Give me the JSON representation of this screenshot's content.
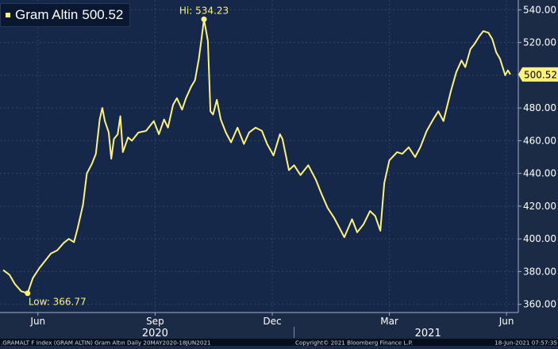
{
  "colors": {
    "background": "#1b2b45",
    "plot_background": "#15284a",
    "line": "#fff27a",
    "grid": "#2e4568",
    "text": "#ffffff",
    "label_text": "#fff27a",
    "footer_background": "#070f1f",
    "legend_background": "#0a1730",
    "last_price_tag": "#fff27a"
  },
  "footer": {
    "left": ".GRAMALT F Index (GRAM ALTIN) Gram Altın  Daily 20MAY2020-18JUN2021",
    "center": "Copyright© 2021 Bloomberg Finance L.P.",
    "right": "18-Jun-2021 07:57:35"
  },
  "chart_data": {
    "type": "line",
    "title": "",
    "legend": [
      {
        "name": "Gram Altin",
        "value": "500.52"
      }
    ],
    "last_value_label": "500.52",
    "high_label": "Hi: 534.23",
    "low_label": "Low: 366.77",
    "y_ticks": [
      "360.00",
      "380.00",
      "400.00",
      "420.00",
      "440.00",
      "460.00",
      "480.00",
      "500.00",
      "520.00",
      "540.00"
    ],
    "ylim": [
      355,
      546
    ],
    "xlim": [
      "2020-05-20",
      "2021-06-18"
    ],
    "x_ticks": [
      {
        "label": "Jun",
        "date": "2020-06-16"
      },
      {
        "label": "Sep",
        "date": "2020-09-15"
      },
      {
        "label": "Dec",
        "date": "2020-12-15"
      },
      {
        "label": "Mar",
        "date": "2021-03-16"
      },
      {
        "label": "Jun",
        "date": "2021-06-15"
      }
    ],
    "year_labels": [
      {
        "label": "2020",
        "date": "2020-09-15"
      },
      {
        "label": "2021",
        "date": "2021-04-15"
      }
    ],
    "grid": true,
    "series": [
      {
        "name": "Gram Altin",
        "points": [
          [
            "2020-05-20",
            381.0
          ],
          [
            "2020-05-25",
            378.0
          ],
          [
            "2020-05-29",
            372.5
          ],
          [
            "2020-06-03",
            368.0
          ],
          [
            "2020-06-08",
            366.77
          ],
          [
            "2020-06-12",
            376.0
          ],
          [
            "2020-06-17",
            382.0
          ],
          [
            "2020-06-22",
            387.0
          ],
          [
            "2020-06-26",
            391.0
          ],
          [
            "2020-07-01",
            393.0
          ],
          [
            "2020-07-06",
            397.5
          ],
          [
            "2020-07-10",
            400.0
          ],
          [
            "2020-07-14",
            398.0
          ],
          [
            "2020-07-17",
            407.0
          ],
          [
            "2020-07-21",
            421.0
          ],
          [
            "2020-07-24",
            440.0
          ],
          [
            "2020-07-28",
            446.0
          ],
          [
            "2020-07-31",
            452.0
          ],
          [
            "2020-08-03",
            473.0
          ],
          [
            "2020-08-05",
            480.0
          ],
          [
            "2020-08-07",
            472.0
          ],
          [
            "2020-08-10",
            465.0
          ],
          [
            "2020-08-12",
            449.0
          ],
          [
            "2020-08-14",
            461.0
          ],
          [
            "2020-08-17",
            464.0
          ],
          [
            "2020-08-19",
            475.0
          ],
          [
            "2020-08-21",
            453.0
          ],
          [
            "2020-08-25",
            462.0
          ],
          [
            "2020-08-28",
            460.0
          ],
          [
            "2020-09-02",
            465.0
          ],
          [
            "2020-09-08",
            466.0
          ],
          [
            "2020-09-14",
            472.0
          ],
          [
            "2020-09-18",
            464.0
          ],
          [
            "2020-09-22",
            473.0
          ],
          [
            "2020-09-25",
            468.0
          ],
          [
            "2020-09-29",
            482.0
          ],
          [
            "2020-10-02",
            486.0
          ],
          [
            "2020-10-06",
            479.0
          ],
          [
            "2020-10-09",
            486.0
          ],
          [
            "2020-10-13",
            493.0
          ],
          [
            "2020-10-16",
            497.0
          ],
          [
            "2020-10-19",
            510.0
          ],
          [
            "2020-10-21",
            522.0
          ],
          [
            "2020-10-23",
            534.23
          ],
          [
            "2020-10-26",
            521.0
          ],
          [
            "2020-10-28",
            478.0
          ],
          [
            "2020-10-30",
            476.0
          ],
          [
            "2020-11-02",
            485.0
          ],
          [
            "2020-11-05",
            473.0
          ],
          [
            "2020-11-09",
            465.0
          ],
          [
            "2020-11-13",
            459.0
          ],
          [
            "2020-11-18",
            468.0
          ],
          [
            "2020-11-23",
            458.0
          ],
          [
            "2020-11-27",
            465.0
          ],
          [
            "2020-12-02",
            468.0
          ],
          [
            "2020-12-07",
            466.0
          ],
          [
            "2020-12-11",
            458.0
          ],
          [
            "2020-12-16",
            451.0
          ],
          [
            "2020-12-21",
            464.0
          ],
          [
            "2020-12-23",
            461.0
          ],
          [
            "2020-12-28",
            442.0
          ],
          [
            "2021-01-01",
            445.0
          ],
          [
            "2021-01-06",
            439.0
          ],
          [
            "2021-01-12",
            445.0
          ],
          [
            "2021-01-18",
            436.0
          ],
          [
            "2021-01-22",
            428.0
          ],
          [
            "2021-01-27",
            419.0
          ],
          [
            "2021-02-01",
            413.0
          ],
          [
            "2021-02-05",
            407.0
          ],
          [
            "2021-02-09",
            401.0
          ],
          [
            "2021-02-15",
            412.0
          ],
          [
            "2021-02-19",
            404.0
          ],
          [
            "2021-02-24",
            409.0
          ],
          [
            "2021-03-01",
            417.0
          ],
          [
            "2021-03-05",
            414.0
          ],
          [
            "2021-03-09",
            405.0
          ],
          [
            "2021-03-12",
            434.0
          ],
          [
            "2021-03-16",
            448.0
          ],
          [
            "2021-03-22",
            453.0
          ],
          [
            "2021-03-26",
            452.0
          ],
          [
            "2021-03-31",
            456.0
          ],
          [
            "2021-04-05",
            450.0
          ],
          [
            "2021-04-09",
            456.0
          ],
          [
            "2021-04-14",
            466.0
          ],
          [
            "2021-04-19",
            473.0
          ],
          [
            "2021-04-23",
            478.0
          ],
          [
            "2021-04-27",
            472.0
          ],
          [
            "2021-05-03",
            491.0
          ],
          [
            "2021-05-07",
            502.0
          ],
          [
            "2021-05-11",
            509.0
          ],
          [
            "2021-05-14",
            505.0
          ],
          [
            "2021-05-18",
            516.0
          ],
          [
            "2021-05-21",
            519.0
          ],
          [
            "2021-05-25",
            524.0
          ],
          [
            "2021-05-28",
            527.0
          ],
          [
            "2021-06-01",
            526.0
          ],
          [
            "2021-06-04",
            522.0
          ],
          [
            "2021-06-07",
            514.0
          ],
          [
            "2021-06-10",
            510.0
          ],
          [
            "2021-06-14",
            500.0
          ],
          [
            "2021-06-16",
            503.0
          ],
          [
            "2021-06-18",
            500.52
          ]
        ]
      }
    ]
  }
}
